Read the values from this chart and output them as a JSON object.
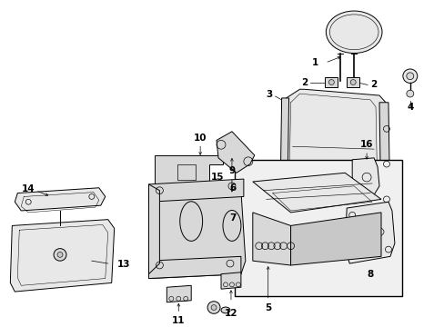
{
  "bg_color": "#ffffff",
  "fig_width": 4.89,
  "fig_height": 3.6,
  "dpi": 100,
  "line_color": "#000000",
  "fill_light": "#e8e8e8",
  "fill_mid": "#d8d8d8",
  "fill_dark": "#c8c8c8"
}
